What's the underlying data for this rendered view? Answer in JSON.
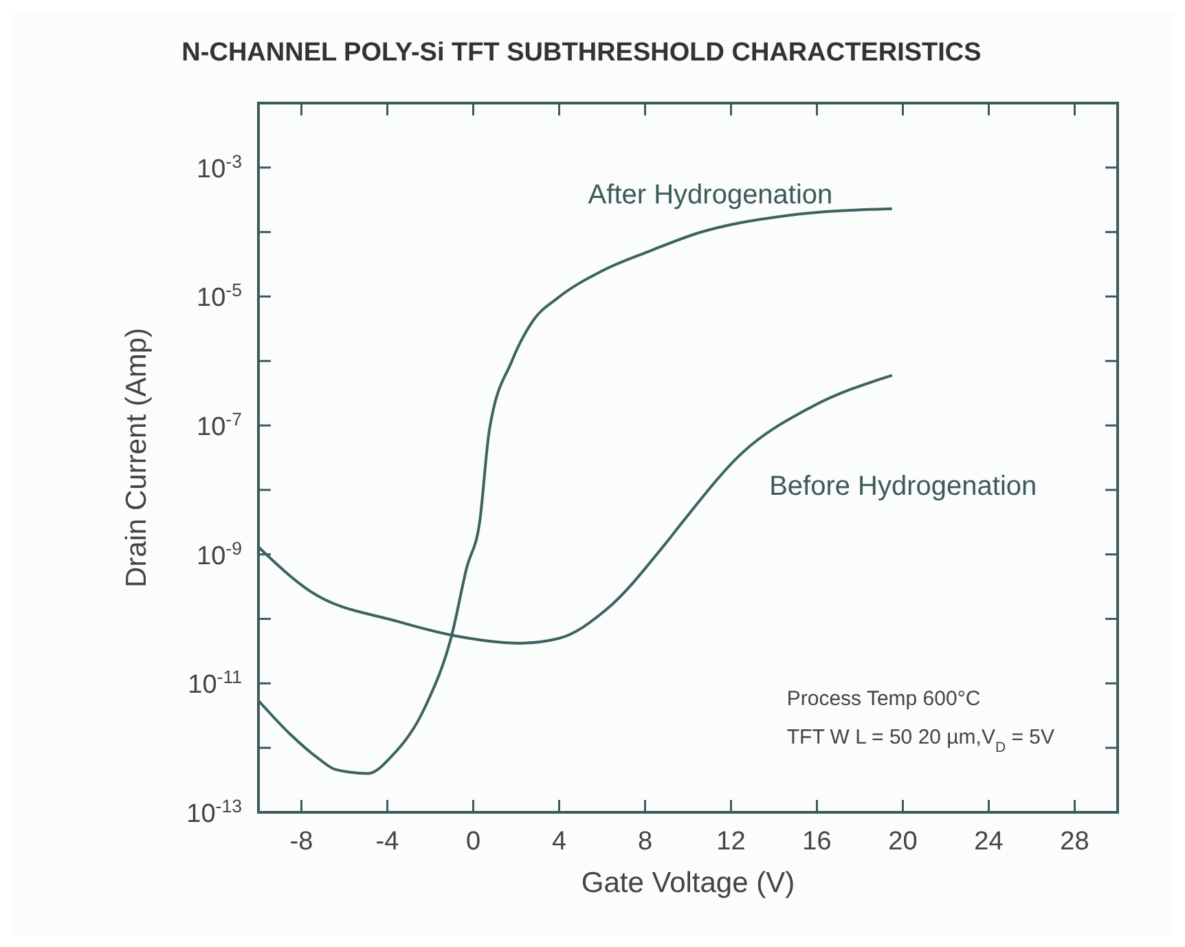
{
  "chart_data": {
    "type": "line",
    "title": "N-CHANNEL POLY-Si TFT SUBTHRESHOLD CHARACTERISTICS",
    "xlabel": "Gate Voltage (V)",
    "ylabel": "Drain Current (Amp)",
    "log": "y",
    "grid": false,
    "marker": "none",
    "line_style": "solid",
    "xlim": [
      -10,
      30
    ],
    "xticks": [
      -8,
      -4,
      0,
      4,
      8,
      12,
      16,
      20,
      24,
      28
    ],
    "ylim": [
      1e-13,
      0.01
    ],
    "yticks": [
      {
        "value": 1e-13,
        "label": "10$^{-13}$"
      },
      {
        "value": 1e-12,
        "label": null
      },
      {
        "value": 1e-11,
        "label": "10$^{-11}$"
      },
      {
        "value": 1e-10,
        "label": null
      },
      {
        "value": 1e-09,
        "label": "10$^{-9}$"
      },
      {
        "value": 1e-08,
        "label": null
      },
      {
        "value": 1e-07,
        "label": "10$^{-7}$"
      },
      {
        "value": 1e-06,
        "label": null
      },
      {
        "value": 1e-05,
        "label": "10$^{-5}$"
      },
      {
        "value": 0.0001,
        "label": null
      },
      {
        "value": 0.001,
        "label": "10$^{-3}$"
      }
    ],
    "series": [
      {
        "name": "After Hydrogenation",
        "color": "#3d6262",
        "x": [
          -10,
          -8.5,
          -7.2,
          -6.4,
          -4.9,
          -3.8,
          -2.2,
          -1,
          -0.3,
          0.3,
          0.75,
          1.8,
          2.8,
          3.9,
          6,
          8.3,
          10.4,
          14.6,
          19.5
        ],
        "values": [
          5.4e-12,
          1.6e-12,
          6.8e-13,
          4.6e-13,
          4e-13,
          7.4e-13,
          4.6e-12,
          5.6e-11,
          6.3e-10,
          3.2e-09,
          8.5e-08,
          1e-06,
          4.3e-06,
          9.3e-06,
          2.5e-05,
          5.2e-05,
          9.5e-05,
          0.00018,
          0.00023
        ]
      },
      {
        "name": "Before Hydrogenation",
        "color": "#3d6262",
        "x": [
          -10,
          -7.6,
          -3.5,
          -1,
          2.2,
          4,
          6.2,
          8.9,
          9.75,
          12.5,
          15.7,
          19.5
        ],
        "values": [
          1.3e-09,
          2.7e-10,
          9.1e-11,
          5.6e-11,
          4.2e-11,
          5e-11,
          1.4e-10,
          1.4e-09,
          3.2e-09,
          3.7e-08,
          1.9e-07,
          6e-07
        ]
      }
    ],
    "annotations": [
      "Process Temp   600°C",
      "TFT W L = 50 20 µm,V$_{D}$ = 5V"
    ]
  }
}
